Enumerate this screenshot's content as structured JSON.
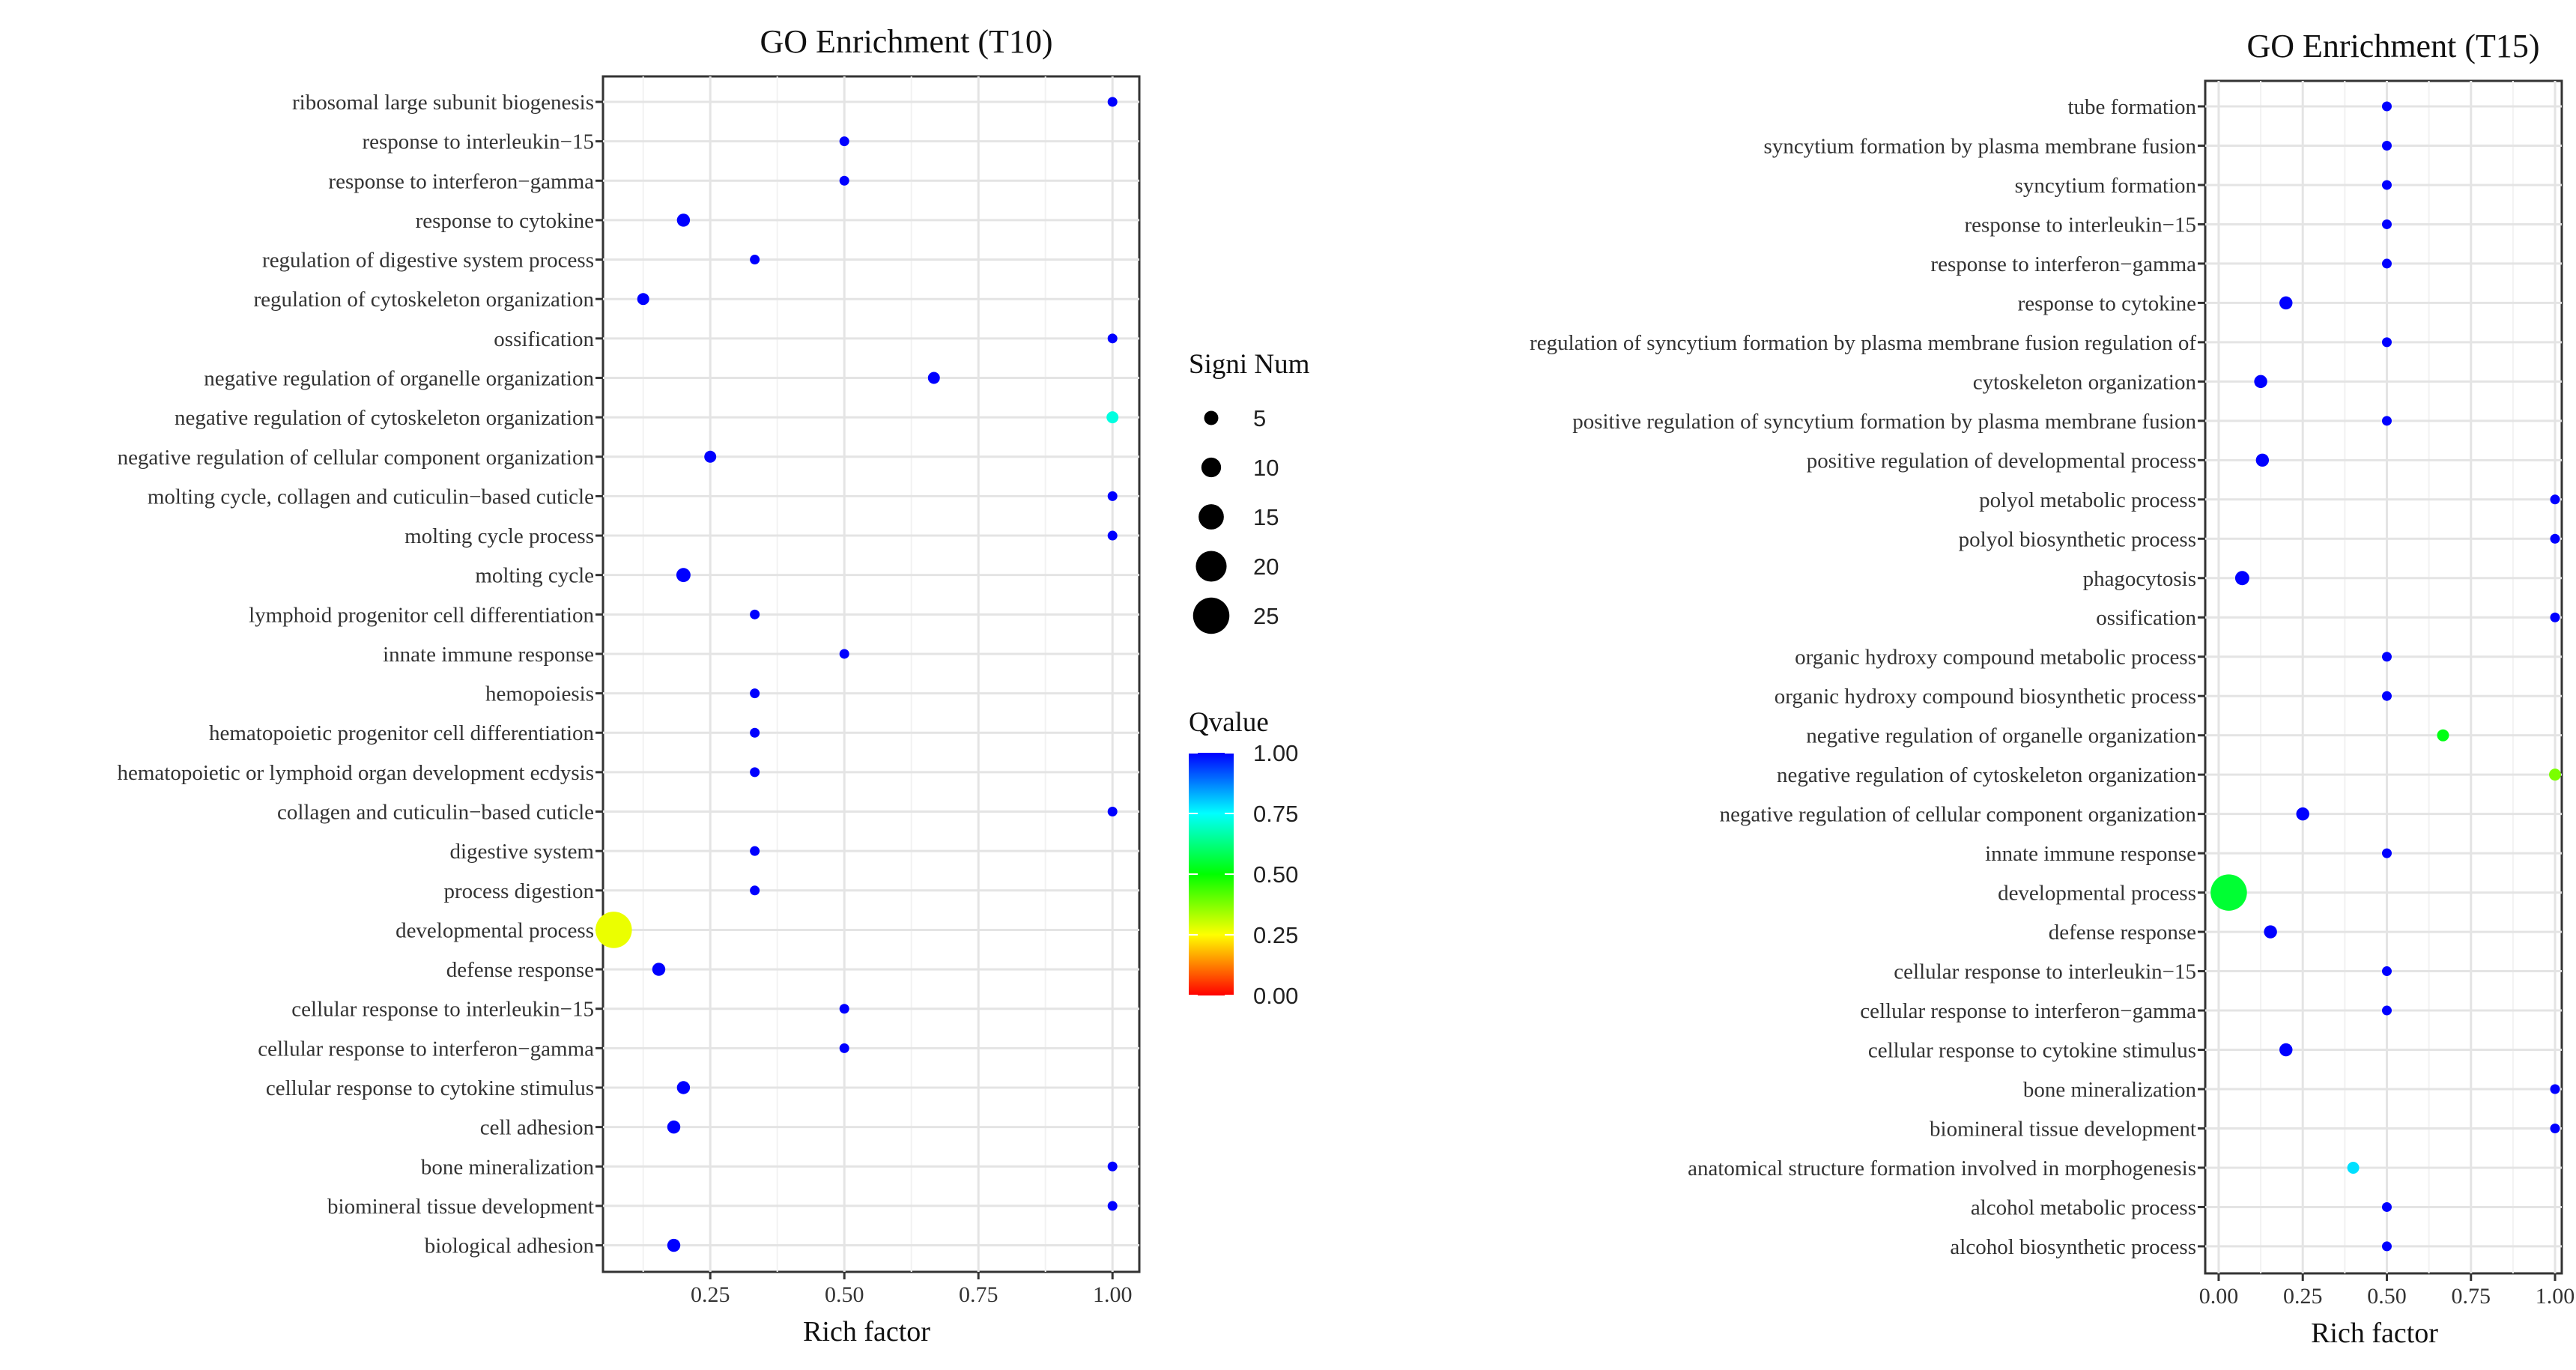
{
  "chart_data": [
    {
      "type": "scatter",
      "title": "GO Enrichment (T10)",
      "xlabel": "Rich factor",
      "xlim": [
        0.05,
        1.05
      ],
      "xticks": [
        0.25,
        0.5,
        0.75,
        1.0
      ],
      "xtick_labels": [
        "0.25",
        "0.50",
        "0.75",
        "1.00"
      ],
      "points": [
        {
          "term": "ribosomal large subunit biogenesis",
          "rich": 1.0,
          "num": 1,
          "q": 1.0
        },
        {
          "term": "response to interleukin−15",
          "rich": 0.5,
          "num": 1,
          "q": 1.0
        },
        {
          "term": "response to interferon−gamma",
          "rich": 0.5,
          "num": 1,
          "q": 1.0
        },
        {
          "term": "response to cytokine",
          "rich": 0.2,
          "num": 4,
          "q": 1.0
        },
        {
          "term": "regulation of digestive system process",
          "rich": 0.333,
          "num": 1,
          "q": 1.0
        },
        {
          "term": "regulation of cytoskeleton organization",
          "rich": 0.125,
          "num": 3,
          "q": 1.0
        },
        {
          "term": "ossification",
          "rich": 1.0,
          "num": 1,
          "q": 1.0
        },
        {
          "term": "negative regulation of organelle organization",
          "rich": 0.667,
          "num": 3,
          "q": 1.0
        },
        {
          "term": "negative regulation of cytoskeleton organization",
          "rich": 1.0,
          "num": 3,
          "q": 0.72
        },
        {
          "term": "negative regulation of cellular component organization",
          "rich": 0.25,
          "num": 3,
          "q": 1.0
        },
        {
          "term": "molting cycle, collagen and cuticulin−based cuticle",
          "rich": 1.0,
          "num": 1,
          "q": 1.0
        },
        {
          "term": "molting cycle process",
          "rich": 1.0,
          "num": 1,
          "q": 1.0
        },
        {
          "term": "molting cycle",
          "rich": 0.2,
          "num": 5,
          "q": 1.0
        },
        {
          "term": "lymphoid progenitor cell differentiation",
          "rich": 0.333,
          "num": 1,
          "q": 1.0
        },
        {
          "term": "innate immune response",
          "rich": 0.5,
          "num": 1,
          "q": 1.0
        },
        {
          "term": "hemopoiesis",
          "rich": 0.333,
          "num": 1,
          "q": 1.0
        },
        {
          "term": "hematopoietic progenitor cell differentiation",
          "rich": 0.333,
          "num": 1,
          "q": 1.0
        },
        {
          "term": "hematopoietic or lymphoid organ development ecdysis",
          "rich": 0.333,
          "num": 1,
          "q": 1.0
        },
        {
          "term": "collagen and cuticulin−based cuticle",
          "rich": 1.0,
          "num": 1,
          "q": 1.0
        },
        {
          "term": "digestive system",
          "rich": 0.333,
          "num": 1,
          "q": 1.0
        },
        {
          "term": "process digestion",
          "rich": 0.333,
          "num": 1,
          "q": 1.0
        },
        {
          "term": "developmental process",
          "rich": 0.07,
          "num": 25,
          "q": 0.27
        },
        {
          "term": "defense response",
          "rich": 0.154,
          "num": 4,
          "q": 1.0
        },
        {
          "term": "cellular response to interleukin−15",
          "rich": 0.5,
          "num": 1,
          "q": 1.0
        },
        {
          "term": "cellular response to interferon−gamma",
          "rich": 0.5,
          "num": 1,
          "q": 1.0
        },
        {
          "term": "cellular response to cytokine stimulus",
          "rich": 0.2,
          "num": 4,
          "q": 1.0
        },
        {
          "term": "cell adhesion",
          "rich": 0.182,
          "num": 4,
          "q": 1.0
        },
        {
          "term": "bone mineralization",
          "rich": 1.0,
          "num": 1,
          "q": 1.0
        },
        {
          "term": "biomineral tissue development",
          "rich": 1.0,
          "num": 1,
          "q": 1.0
        },
        {
          "term": "biological adhesion",
          "rich": 0.182,
          "num": 4,
          "q": 1.0
        }
      ]
    },
    {
      "type": "scatter",
      "title": "GO Enrichment (T15)",
      "xlabel": "Rich factor",
      "xlim": [
        0.0,
        1.0
      ],
      "xticks": [
        0.0,
        0.25,
        0.5,
        0.75,
        1.0
      ],
      "xtick_labels": [
        "0.00",
        "0.25",
        "0.50",
        "0.75",
        "1.00"
      ],
      "points": [
        {
          "term": "tube formation",
          "rich": 0.5,
          "num": 1,
          "q": 1.0
        },
        {
          "term": "syncytium formation by plasma membrane fusion",
          "rich": 0.5,
          "num": 1,
          "q": 1.0
        },
        {
          "term": "syncytium formation",
          "rich": 0.5,
          "num": 1,
          "q": 1.0
        },
        {
          "term": "response to interleukin−15",
          "rich": 0.5,
          "num": 1,
          "q": 1.0
        },
        {
          "term": "response to interferon−gamma",
          "rich": 0.5,
          "num": 1,
          "q": 1.0
        },
        {
          "term": "response to cytokine",
          "rich": 0.2,
          "num": 4,
          "q": 1.0
        },
        {
          "term": "regulation of syncytium formation by plasma membrane fusion regulation of",
          "rich": 0.5,
          "num": 1,
          "q": 1.0
        },
        {
          "term": "cytoskeleton organization",
          "rich": 0.125,
          "num": 4,
          "q": 1.0
        },
        {
          "term": "positive regulation of syncytium formation by plasma membrane fusion",
          "rich": 0.5,
          "num": 1,
          "q": 1.0
        },
        {
          "term": "positive regulation of developmental process",
          "rich": 0.13,
          "num": 4,
          "q": 1.0
        },
        {
          "term": "polyol metabolic process",
          "rich": 1.0,
          "num": 1,
          "q": 1.0
        },
        {
          "term": "polyol biosynthetic process",
          "rich": 1.0,
          "num": 1,
          "q": 1.0
        },
        {
          "term": "phagocytosis",
          "rich": 0.07,
          "num": 5,
          "q": 1.0
        },
        {
          "term": "ossification",
          "rich": 1.0,
          "num": 1,
          "q": 1.0
        },
        {
          "term": "organic hydroxy compound metabolic process",
          "rich": 0.5,
          "num": 1,
          "q": 1.0
        },
        {
          "term": "organic hydroxy compound biosynthetic process",
          "rich": 0.5,
          "num": 1,
          "q": 1.0
        },
        {
          "term": "negative regulation of organelle organization",
          "rich": 0.667,
          "num": 3,
          "q": 0.52
        },
        {
          "term": "negative regulation of cytoskeleton organization",
          "rich": 1.0,
          "num": 3,
          "q": 0.38
        },
        {
          "term": "negative regulation of cellular component organization",
          "rich": 0.25,
          "num": 4,
          "q": 1.0
        },
        {
          "term": "innate immune response",
          "rich": 0.5,
          "num": 1,
          "q": 1.0
        },
        {
          "term": "developmental process",
          "rich": 0.03,
          "num": 25,
          "q": 0.55
        },
        {
          "term": "defense response",
          "rich": 0.154,
          "num": 4,
          "q": 1.0
        },
        {
          "term": "cellular response to interleukin−15",
          "rich": 0.5,
          "num": 1,
          "q": 1.0
        },
        {
          "term": "cellular response to interferon−gamma",
          "rich": 0.5,
          "num": 1,
          "q": 1.0
        },
        {
          "term": "cellular response to cytokine stimulus",
          "rich": 0.2,
          "num": 4,
          "q": 1.0
        },
        {
          "term": "bone mineralization",
          "rich": 1.0,
          "num": 1,
          "q": 1.0
        },
        {
          "term": "biomineral tissue development",
          "rich": 1.0,
          "num": 1,
          "q": 1.0
        },
        {
          "term": "anatomical structure formation involved in morphogenesis",
          "rich": 0.4,
          "num": 3,
          "q": 0.78
        },
        {
          "term": "alcohol metabolic process",
          "rich": 0.5,
          "num": 1,
          "q": 1.0
        },
        {
          "term": "alcohol biosynthetic process",
          "rich": 0.5,
          "num": 1,
          "q": 1.0
        }
      ]
    }
  ],
  "legend": {
    "size_title": "Signi Num",
    "size_values": [
      5,
      10,
      15,
      20,
      25
    ],
    "color_title": "Qvalue",
    "color_ticks": [
      1.0,
      0.75,
      0.5,
      0.25,
      0.0
    ],
    "color_tick_labels": [
      "1.00",
      "0.75",
      "0.50",
      "0.25",
      "0.00"
    ],
    "color_stops": [
      "#ff0000",
      "#ffff00",
      "#00ff00",
      "#00ffff",
      "#0000ff"
    ]
  }
}
